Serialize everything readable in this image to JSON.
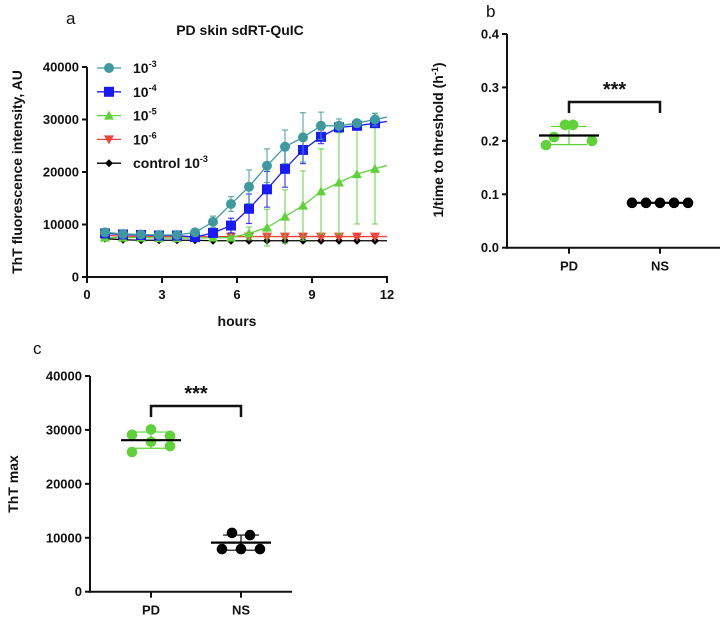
{
  "chart_data": [
    {
      "panel": "a",
      "type": "line",
      "title": "PD skin sdRT-QuIC",
      "xlabel": "hours",
      "ylabel": "ThT fluorescence intensity, AU",
      "xlim": [
        0,
        12
      ],
      "ylim": [
        0,
        40000
      ],
      "xticks": [
        "0",
        "3",
        "6",
        "9",
        "12"
      ],
      "yticks": [
        "0",
        "10000",
        "20000",
        "30000",
        "40000"
      ],
      "legend_position": "top-left",
      "x": [
        0.72,
        1.44,
        2.16,
        2.88,
        3.6,
        4.32,
        5.04,
        5.76,
        6.48,
        7.2,
        7.92,
        8.64,
        9.36,
        10.08,
        10.8,
        11.52
      ],
      "series": [
        {
          "name": "10-3",
          "label_base": "10",
          "label_exp": "-3",
          "color": "#3f9a9f",
          "marker": "circle",
          "values": [
            8500,
            8200,
            8100,
            8000,
            8000,
            8500,
            10500,
            13900,
            17200,
            21200,
            24800,
            26600,
            28800,
            28800,
            29300,
            30000
          ],
          "errors": [
            300,
            300,
            300,
            300,
            300,
            400,
            1100,
            1400,
            3200,
            3200,
            3200,
            4700,
            2600,
            1300,
            700,
            1200
          ]
        },
        {
          "name": "10-4",
          "label_base": "10",
          "label_exp": "-4",
          "color": "#1a1aff",
          "marker": "square",
          "values": [
            8300,
            8100,
            8000,
            7900,
            7900,
            7600,
            8400,
            9800,
            13000,
            16700,
            20600,
            24200,
            26700,
            28500,
            28800,
            29300
          ],
          "errors": [
            200,
            200,
            200,
            200,
            200,
            200,
            600,
            1400,
            2800,
            3400,
            3500,
            2600,
            1300,
            900,
            500,
            700
          ]
        },
        {
          "name": "10-5",
          "label_base": "10",
          "label_exp": "-5",
          "color": "#5fd23a",
          "marker": "triangle-up",
          "values": [
            7500,
            7500,
            7500,
            7400,
            7400,
            7400,
            7500,
            7500,
            8300,
            9400,
            11500,
            13600,
            16300,
            18000,
            19600,
            20600
          ],
          "errors": [
            200,
            200,
            200,
            200,
            200,
            200,
            200,
            300,
            1200,
            3500,
            5100,
            6600,
            8100,
            9800,
            9500,
            10500
          ]
        },
        {
          "name": "10-6",
          "label_base": "10",
          "label_exp": "-6",
          "color": "#f0453a",
          "marker": "triangle-down",
          "values": [
            7900,
            7800,
            7700,
            7700,
            7700,
            7700,
            7700,
            7700,
            7700,
            7700,
            7700,
            7700,
            7700,
            7700,
            7700,
            7700
          ],
          "errors": [
            200,
            200,
            200,
            200,
            200,
            200,
            200,
            200,
            200,
            200,
            200,
            200,
            200,
            200,
            200,
            200
          ]
        },
        {
          "name": "control 10-3",
          "label_base": "control 10",
          "label_exp": "-3",
          "color": "#000000",
          "marker": "diamond",
          "values": [
            7300,
            7100,
            7000,
            7000,
            7000,
            7000,
            6900,
            6900,
            6900,
            6900,
            6900,
            6900,
            6900,
            6900,
            6900,
            6900
          ],
          "errors": [
            150,
            150,
            150,
            150,
            150,
            150,
            150,
            150,
            150,
            150,
            150,
            150,
            150,
            150,
            150,
            150
          ]
        }
      ]
    },
    {
      "panel": "b",
      "type": "scatter",
      "ylabel_base": "1/time to threshold (h",
      "ylabel_exp": "-1",
      "ylabel_end": ")",
      "ylim": [
        0,
        0.4
      ],
      "yticks": [
        "0.0",
        "0.1",
        "0.2",
        "0.3",
        "0.4"
      ],
      "categories": [
        "PD",
        "NS"
      ],
      "groups": [
        {
          "name": "PD",
          "color": "#5fd23a",
          "values": [
            0.192,
            0.207,
            0.23,
            0.23,
            0.2,
            0.2
          ],
          "mean": 0.21,
          "sd": 0.017
        },
        {
          "name": "NS",
          "color": "#000000",
          "values": [
            0.084,
            0.084,
            0.084,
            0.084,
            0.084
          ],
          "mean": 0.084,
          "sd": 0
        }
      ],
      "significance": "***"
    },
    {
      "panel": "c",
      "type": "scatter",
      "ylabel": "ThT max",
      "ylim": [
        0,
        40000
      ],
      "yticks": [
        "0",
        "10000",
        "20000",
        "30000",
        "40000"
      ],
      "categories": [
        "PD",
        "NS"
      ],
      "groups": [
        {
          "name": "PD",
          "color": "#5fd23a",
          "values": [
            25900,
            29100,
            30100,
            27800,
            28900,
            27000
          ],
          "mean": 28100,
          "sd": 1500
        },
        {
          "name": "NS",
          "color": "#000000",
          "values": [
            7900,
            10900,
            7900,
            10500,
            7900
          ],
          "mean": 9100,
          "sd": 1400
        }
      ],
      "significance": "***"
    }
  ]
}
